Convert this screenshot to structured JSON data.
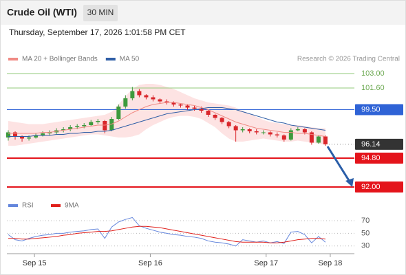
{
  "header": {
    "title": "Crude Oil (WTI)",
    "timeframe": "30 MIN",
    "timestamp": "Thursday, September 17, 2026 1:01:58 PM CET"
  },
  "chart_data": {
    "type": "candlestick",
    "credit": "Research © 2026 Trading Central",
    "x": [
      0,
      1,
      2,
      3,
      4,
      5,
      6,
      7,
      8,
      9,
      10,
      11,
      12,
      13,
      14,
      15,
      16,
      17,
      18,
      19,
      20,
      21,
      22,
      23,
      24,
      25,
      26,
      27,
      28,
      29,
      30,
      31,
      32,
      33,
      34,
      35,
      36,
      37,
      38,
      39,
      40,
      41,
      42,
      43,
      44,
      45,
      46
    ],
    "xlim": [
      0,
      50
    ],
    "xticks": [
      {
        "value": 3.8,
        "label": "Sep 15"
      },
      {
        "value": 20.6,
        "label": "Sep 16"
      },
      {
        "value": 37.4,
        "label": "Sep 17"
      },
      {
        "value": 46.7,
        "label": "Sep 18"
      }
    ],
    "ylim": [
      91.8,
      103.4
    ],
    "open": [
      96.8,
      97.3,
      96.9,
      96.7,
      96.8,
      97.0,
      97.2,
      97.3,
      97.5,
      97.6,
      97.8,
      97.9,
      98.0,
      98.3,
      98.4,
      97.5,
      98.6,
      99.8,
      100.6,
      101.3,
      100.9,
      100.7,
      100.5,
      100.3,
      100.2,
      100.0,
      99.9,
      99.7,
      99.6,
      99.4,
      99.0,
      98.7,
      98.3,
      97.9,
      97.5,
      97.6,
      97.4,
      97.3,
      97.3,
      97.1,
      97.0,
      96.6,
      97.5,
      97.6,
      97.3,
      96.3,
      96.9
    ],
    "high": [
      97.5,
      97.4,
      97.0,
      97.0,
      97.2,
      97.4,
      97.5,
      97.7,
      97.8,
      98.0,
      98.1,
      98.2,
      98.5,
      98.6,
      98.5,
      98.8,
      100.0,
      100.9,
      101.7,
      101.5,
      101.0,
      100.9,
      100.6,
      100.5,
      100.3,
      100.1,
      100.0,
      99.9,
      99.8,
      99.5,
      99.1,
      98.8,
      98.4,
      98.0,
      97.8,
      97.7,
      97.6,
      97.5,
      97.4,
      97.3,
      97.1,
      97.7,
      97.8,
      97.7,
      97.4,
      97.0,
      97.0
    ],
    "low": [
      96.5,
      96.6,
      96.4,
      96.5,
      96.7,
      96.9,
      97.0,
      97.1,
      97.3,
      97.4,
      97.6,
      97.7,
      97.9,
      98.1,
      97.2,
      97.4,
      98.5,
      99.6,
      100.4,
      100.7,
      100.5,
      100.3,
      100.1,
      100.0,
      99.8,
      99.7,
      99.5,
      99.4,
      99.2,
      98.8,
      98.5,
      98.1,
      97.7,
      96.4,
      97.3,
      97.2,
      97.1,
      97.1,
      96.9,
      96.8,
      96.4,
      96.5,
      97.4,
      97.1,
      96.1,
      96.2,
      96.0
    ],
    "close": [
      97.3,
      96.9,
      96.7,
      96.8,
      97.0,
      97.2,
      97.3,
      97.5,
      97.6,
      97.8,
      97.9,
      98.0,
      98.3,
      98.4,
      97.5,
      98.6,
      99.8,
      100.6,
      101.3,
      100.9,
      100.7,
      100.5,
      100.3,
      100.2,
      100.0,
      99.9,
      99.7,
      99.6,
      99.4,
      99.0,
      98.7,
      98.3,
      97.9,
      97.5,
      97.6,
      97.4,
      97.3,
      97.3,
      97.1,
      97.0,
      96.6,
      97.5,
      97.6,
      97.3,
      96.3,
      96.9,
      96.14
    ],
    "up_color": "#3d9a3d",
    "down_color": "#d9262b",
    "band_color": "#fde3e3",
    "series": [
      {
        "name": "MA 20 + Bollinger Bands",
        "color": "#f08a84",
        "values": [
          97.2,
          97.2,
          97.2,
          97.2,
          97.2,
          97.3,
          97.3,
          97.4,
          97.5,
          97.6,
          97.7,
          97.8,
          97.9,
          98.0,
          98.0,
          98.1,
          98.4,
          98.8,
          99.2,
          99.5,
          99.8,
          100.0,
          100.1,
          100.2,
          100.2,
          100.1,
          100.0,
          99.9,
          99.7,
          99.5,
          99.2,
          98.9,
          98.6,
          98.3,
          98.1,
          97.9,
          97.7,
          97.6,
          97.5,
          97.4,
          97.3,
          97.3,
          97.2,
          97.2,
          97.1,
          97.0,
          96.9
        ],
        "upper": [
          98.4,
          98.3,
          98.2,
          98.1,
          98.1,
          98.1,
          98.2,
          98.3,
          98.4,
          98.5,
          98.6,
          98.7,
          98.8,
          98.9,
          99.0,
          99.3,
          100.0,
          100.8,
          101.5,
          101.9,
          102.0,
          102.0,
          101.9,
          101.7,
          101.5,
          101.2,
          100.9,
          100.6,
          100.4,
          100.2,
          100.1,
          100.0,
          99.9,
          99.7,
          99.4,
          99.1,
          98.8,
          98.5,
          98.3,
          98.2,
          98.1,
          98.0,
          98.0,
          97.9,
          97.8,
          97.7,
          97.7
        ],
        "lower": [
          96.0,
          96.0,
          96.1,
          96.2,
          96.3,
          96.4,
          96.5,
          96.6,
          96.7,
          96.8,
          96.9,
          97.0,
          97.1,
          97.1,
          97.0,
          96.9,
          96.8,
          96.8,
          96.9,
          97.1,
          97.6,
          98.0,
          98.3,
          98.6,
          98.8,
          98.9,
          98.9,
          98.8,
          98.6,
          98.2,
          97.8,
          97.2,
          96.7,
          96.4,
          96.4,
          96.5,
          96.6,
          96.7,
          96.6,
          96.5,
          96.4,
          96.4,
          96.5,
          96.4,
          96.3,
          96.2,
          96.1
        ]
      },
      {
        "name": "MA 50",
        "color": "#2f5ea6",
        "values": [
          96.9,
          96.9,
          96.9,
          96.9,
          97.0,
          97.0,
          97.0,
          97.1,
          97.1,
          97.2,
          97.2,
          97.3,
          97.3,
          97.4,
          97.4,
          97.5,
          97.7,
          97.9,
          98.1,
          98.3,
          98.5,
          98.7,
          98.9,
          99.1,
          99.2,
          99.3,
          99.4,
          99.5,
          99.6,
          99.7,
          99.7,
          99.7,
          99.6,
          99.5,
          99.3,
          99.1,
          98.9,
          98.7,
          98.5,
          98.3,
          98.2,
          98.0,
          97.9,
          97.8,
          97.7,
          97.6,
          97.5
        ]
      }
    ],
    "levels": [
      {
        "value": 103,
        "label": "103.00",
        "color": "#92c878",
        "style": "plain"
      },
      {
        "value": 101.6,
        "label": "101.60",
        "color": "#92c878",
        "style": "plain"
      },
      {
        "value": 99.5,
        "label": "99.50",
        "color": "#2f63d6",
        "style": "box"
      },
      {
        "value": 96.14,
        "label": "96.14",
        "color": "#333333",
        "style": "current"
      },
      {
        "value": 94.8,
        "label": "94.80",
        "color": "#e4141b",
        "style": "box"
      },
      {
        "value": 92,
        "label": "92.00",
        "color": "#e4141b",
        "style": "box"
      }
    ],
    "rsi": {
      "ylim": [
        20,
        82
      ],
      "yticks": [
        30,
        50,
        70
      ],
      "series": [
        {
          "name": "RSI",
          "color": "#6486dc",
          "values": [
            48,
            40,
            38,
            42,
            45,
            47,
            48,
            50,
            50,
            52,
            53,
            54,
            56,
            57,
            42,
            60,
            68,
            72,
            75,
            62,
            58,
            55,
            52,
            50,
            48,
            47,
            45,
            44,
            42,
            38,
            36,
            35,
            33,
            30,
            40,
            38,
            36,
            38,
            35,
            37,
            34,
            52,
            53,
            48,
            35,
            45,
            36
          ]
        },
        {
          "name": "9MA",
          "color": "#e0201b",
          "values": [
            42,
            42,
            41,
            41,
            42,
            43,
            44,
            45,
            47,
            48,
            50,
            51,
            52,
            53,
            53,
            54,
            56,
            58,
            60,
            61,
            61,
            60,
            59,
            57,
            55,
            53,
            51,
            49,
            47,
            45,
            43,
            41,
            39,
            37,
            36,
            36,
            36,
            36,
            35,
            35,
            36,
            38,
            40,
            41,
            42,
            42,
            41
          ]
        }
      ]
    }
  }
}
